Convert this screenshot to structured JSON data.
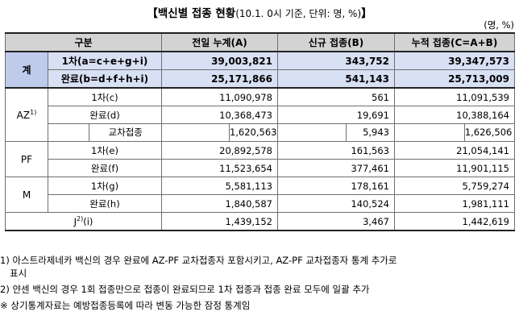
{
  "title": {
    "main": "【백신별 접종 현황",
    "sub": "(10.1. 0시 기준, 단위: 명, %)",
    "end": "】"
  },
  "unit": "(명, %)",
  "header": {
    "col1": "구분",
    "col2": "전일 누계(A)",
    "col3": "신규 접종(B)",
    "col4": "누적 접종(C=A+B)"
  },
  "total": {
    "label": "계",
    "rows": [
      {
        "label": "1차(a=c+e+g+i)",
        "prev": "39,003,821",
        "new": "343,752",
        "cum": "39,347,573"
      },
      {
        "label": "완료(b=d+f+h+i)",
        "prev": "25,171,866",
        "new": "541,143",
        "cum": "25,713,009"
      }
    ]
  },
  "az": {
    "label": "AZ",
    "sup": "1)",
    "rows": [
      {
        "label": "1차(c)",
        "prev": "11,090,978",
        "new": "561",
        "cum": "11,091,539"
      },
      {
        "label": "완료(d)",
        "prev": "10,368,473",
        "new": "19,691",
        "cum": "10,388,164"
      }
    ],
    "cross": {
      "label": "교차접종",
      "prev": "1,620,563",
      "new": "5,943",
      "cum": "1,626,506"
    }
  },
  "pf": {
    "label": "PF",
    "rows": [
      {
        "label": "1차(e)",
        "prev": "20,892,578",
        "new": "161,563",
        "cum": "21,054,141"
      },
      {
        "label": "완료(f)",
        "prev": "11,523,654",
        "new": "377,461",
        "cum": "11,901,115"
      }
    ]
  },
  "m": {
    "label": "M",
    "rows": [
      {
        "label": "1차(g)",
        "prev": "5,581,113",
        "new": "178,161",
        "cum": "5,759,274"
      },
      {
        "label": "완료(h)",
        "prev": "1,840,587",
        "new": "140,524",
        "cum": "1,981,111"
      }
    ]
  },
  "j": {
    "label": "J",
    "sup": "2)",
    "suffix": "(i)",
    "prev": "1,439,152",
    "new": "3,467",
    "cum": "1,442,619"
  },
  "notes": [
    "1) 아스트라제네카 백신의 경우 완료에 AZ-PF 교차접종자 포함시키고, AZ-PF 교차접종자 통계 추가로",
    "표시",
    "2) 얀센 백신의 경우 1회 접종만으로 접종이 완료되므로 1차 접종과 접종 완료 모두에 일괄 추가",
    "※ 상기통계자료는 예방접종등록에 따라 변동 가능한 잠정 통계임"
  ]
}
